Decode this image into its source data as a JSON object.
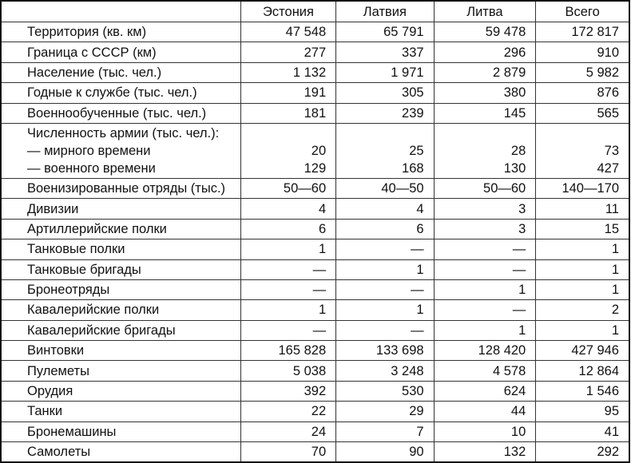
{
  "columns": [
    "",
    "Эстония",
    "Латвия",
    "Литва",
    "Всего"
  ],
  "rows": [
    {
      "label": "Территория (кв. км)",
      "values": [
        "47 548",
        "65 791",
        "59 478",
        "172 817"
      ]
    },
    {
      "label": "Граница с СССР (км)",
      "values": [
        "277",
        "337",
        "296",
        "910"
      ]
    },
    {
      "label": "Население (тыс. чел.)",
      "values": [
        "1 132",
        "1 971",
        "2 879",
        "5 982"
      ]
    },
    {
      "label": "Годные к службе (тыс. чел.)",
      "values": [
        "191",
        "305",
        "380",
        "876"
      ]
    },
    {
      "label": "Военнообученные (тыс. чел.)",
      "values": [
        "181",
        "239",
        "145",
        "565"
      ]
    }
  ],
  "army": {
    "label": "Численность армии (тыс. чел.):",
    "sub": [
      {
        "label": "— мирного времени",
        "values": [
          "20",
          "25",
          "28",
          "73"
        ]
      },
      {
        "label": "— военного времени",
        "values": [
          "129",
          "168",
          "130",
          "427"
        ]
      }
    ]
  },
  "rows2": [
    {
      "label": "Военизированные отряды (тыс.)",
      "values": [
        "50—60",
        "40—50",
        "50—60",
        "140—170"
      ]
    },
    {
      "label": "Дивизии",
      "values": [
        "4",
        "4",
        "3",
        "11"
      ]
    },
    {
      "label": "Артиллерийские полки",
      "values": [
        "6",
        "6",
        "3",
        "15"
      ]
    },
    {
      "label": "Танковые полки",
      "values": [
        "1",
        "—",
        "—",
        "1"
      ]
    },
    {
      "label": "Танковые бригады",
      "values": [
        "—",
        "1",
        "—",
        "1"
      ]
    },
    {
      "label": "Бронеотряды",
      "values": [
        "—",
        "—",
        "1",
        "1"
      ]
    },
    {
      "label": "Кавалерийские полки",
      "values": [
        "1",
        "1",
        "—",
        "2"
      ]
    },
    {
      "label": "Кавалерийские бригады",
      "values": [
        "—",
        "—",
        "1",
        "1"
      ]
    },
    {
      "label": "Винтовки",
      "values": [
        "165 828",
        "133 698",
        "128 420",
        "427 946"
      ]
    },
    {
      "label": "Пулеметы",
      "values": [
        "5 038",
        "3 248",
        "4 578",
        "12 864"
      ]
    },
    {
      "label": "Орудия",
      "values": [
        "392",
        "530",
        "624",
        "1 546"
      ]
    },
    {
      "label": "Танки",
      "values": [
        "22",
        "29",
        "44",
        "95"
      ]
    },
    {
      "label": "Бронемашины",
      "values": [
        "24",
        "7",
        "10",
        "41"
      ]
    },
    {
      "label": "Самолеты",
      "values": [
        "70",
        "90",
        "132",
        "292"
      ]
    }
  ]
}
